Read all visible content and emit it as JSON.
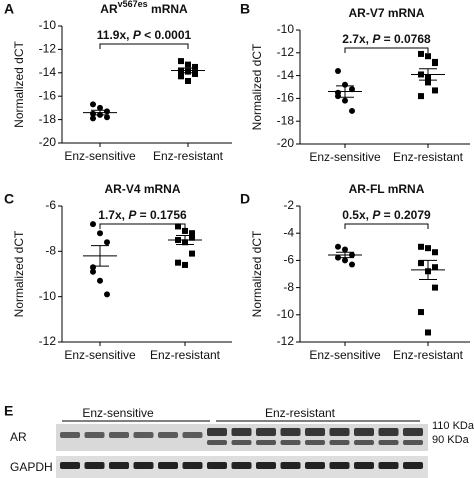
{
  "chart_data": [
    {
      "type": "scatter",
      "panel_label": "A",
      "title": [
        "AR",
        "v567es",
        " mRNA"
      ],
      "annotation": [
        "11.9x, ",
        "P",
        " < 0.0001"
      ],
      "y_label": "Normalized dCT",
      "categories": [
        "Enz-sensitive",
        "Enz-resistant"
      ],
      "values": [
        [
          -16.7,
          -17.0,
          -17.3,
          -17.5,
          -17.6,
          -17.8,
          -17.9
        ],
        [
          -13.0,
          -13.3,
          -13.5,
          -13.8,
          -13.9,
          -14.1,
          -14.3,
          -14.7
        ]
      ],
      "mean": [
        -17.4,
        -13.8
      ],
      "sem": [
        0.2,
        0.2
      ],
      "ylim": [
        -20,
        -10
      ],
      "yticks": [
        -20,
        -18,
        -16,
        -14,
        -12,
        -10
      ]
    },
    {
      "type": "scatter",
      "panel_label": "B",
      "title": "AR-V7 mRNA",
      "annotation": [
        "2.7x, ",
        "P",
        " = 0.0768"
      ],
      "y_label": "Normalized dCT",
      "categories": [
        "Enz-sensitive",
        "Enz-resistant"
      ],
      "values": [
        [
          -13.6,
          -14.8,
          -15.2,
          -15.5,
          -16.2,
          -17.1,
          -15.8
        ],
        [
          -12.1,
          -12.3,
          -12.8,
          -13.9,
          -14.2,
          -15.3,
          -15.8,
          -14.6,
          -12.9
        ]
      ],
      "mean": [
        -15.4,
        -13.9
      ],
      "sem": [
        0.5,
        0.5
      ],
      "ylim": [
        -20,
        -10
      ],
      "yticks": [
        -20,
        -18,
        -16,
        -14,
        -12,
        -10
      ]
    },
    {
      "type": "scatter",
      "panel_label": "C",
      "title": "AR-V4 mRNA",
      "annotation": [
        "1.7x, ",
        "P",
        " = 0.1756"
      ],
      "y_label": "Normalized dCT",
      "categories": [
        "Enz-sensitive",
        "Enz-resistant"
      ],
      "values": [
        [
          -6.8,
          -7.2,
          -7.6,
          -8.7,
          -9.3,
          -9.9,
          -8.9
        ],
        [
          -6.9,
          -7.1,
          -7.2,
          -7.5,
          -7.6,
          -8.1,
          -8.5,
          -8.6,
          -7.4
        ]
      ],
      "mean": [
        -8.2,
        -7.5
      ],
      "sem": [
        0.45,
        0.2
      ],
      "ylim": [
        -12,
        -6
      ],
      "yticks": [
        -12,
        -10,
        -8,
        -6
      ]
    },
    {
      "type": "scatter",
      "panel_label": "D",
      "title": "AR-FL mRNA",
      "annotation": [
        "0.5x, ",
        "P",
        " = 0.2079"
      ],
      "y_label": "Normalized dCT",
      "categories": [
        "Enz-sensitive",
        "Enz-resistant"
      ],
      "values": [
        [
          -5.0,
          -5.2,
          -5.6,
          -5.8,
          -6.0,
          -6.3
        ],
        [
          -5.0,
          -5.1,
          -5.4,
          -6.2,
          -6.8,
          -8.0,
          -9.8,
          -11.3,
          -6.5
        ]
      ],
      "mean": [
        -5.6,
        -6.7
      ],
      "sem": [
        0.2,
        0.7
      ],
      "ylim": [
        -12,
        -2
      ],
      "yticks": [
        -12,
        -10,
        -8,
        -6,
        -4,
        -2
      ]
    }
  ],
  "blot": {
    "panel_label": "E",
    "groups": [
      "Enz-sensitive",
      "Enz-resistant"
    ],
    "rows": [
      "AR",
      "GAPDH"
    ],
    "markers": [
      "110 KDa",
      "90 KDa"
    ]
  }
}
